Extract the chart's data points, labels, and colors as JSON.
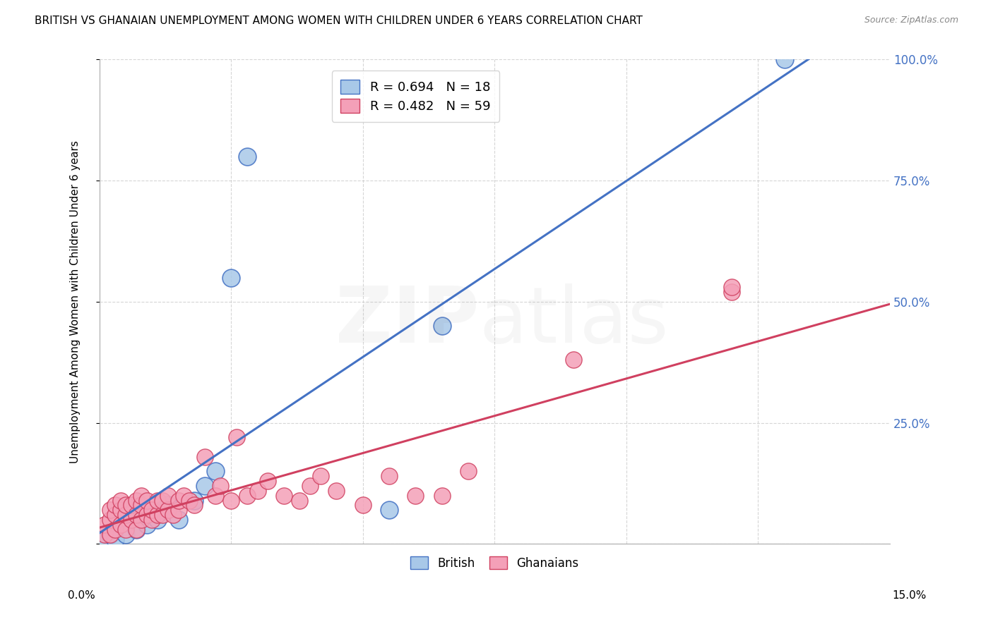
{
  "title": "BRITISH VS GHANAIAN UNEMPLOYMENT AMONG WOMEN WITH CHILDREN UNDER 6 YEARS CORRELATION CHART",
  "source": "Source: ZipAtlas.com",
  "ylabel": "Unemployment Among Women with Children Under 6 years",
  "british_R": 0.694,
  "british_N": 18,
  "ghanaian_R": 0.482,
  "ghanaian_N": 59,
  "british_color": "#a8c8e8",
  "british_line_color": "#4472c4",
  "ghanaian_color": "#f4a0b8",
  "ghanaian_line_color": "#d04060",
  "background_color": "#ffffff",
  "grid_color": "#cccccc",
  "xlim": [
    0.0,
    0.15
  ],
  "ylim": [
    0.0,
    1.0
  ],
  "ytick_vals": [
    0.0,
    0.25,
    0.5,
    0.75,
    1.0
  ],
  "ytick_labels": [
    "",
    "25.0%",
    "50.0%",
    "75.0%",
    "100.0%"
  ],
  "brit_x": [
    0.001,
    0.002,
    0.003,
    0.005,
    0.007,
    0.009,
    0.011,
    0.012,
    0.013,
    0.015,
    0.018,
    0.02,
    0.022,
    0.025,
    0.028,
    0.055,
    0.065,
    0.13
  ],
  "brit_y": [
    0.01,
    0.02,
    0.01,
    0.02,
    0.03,
    0.04,
    0.05,
    0.07,
    0.08,
    0.05,
    0.09,
    0.12,
    0.15,
    0.55,
    0.8,
    0.07,
    0.45,
    1.0
  ],
  "gh_x": [
    0.001,
    0.001,
    0.002,
    0.002,
    0.002,
    0.003,
    0.003,
    0.003,
    0.004,
    0.004,
    0.004,
    0.005,
    0.005,
    0.005,
    0.006,
    0.006,
    0.007,
    0.007,
    0.007,
    0.008,
    0.008,
    0.008,
    0.009,
    0.009,
    0.01,
    0.01,
    0.011,
    0.011,
    0.012,
    0.012,
    0.013,
    0.013,
    0.014,
    0.015,
    0.015,
    0.016,
    0.017,
    0.018,
    0.02,
    0.022,
    0.023,
    0.025,
    0.026,
    0.028,
    0.03,
    0.032,
    0.035,
    0.038,
    0.04,
    0.042,
    0.045,
    0.05,
    0.055,
    0.06,
    0.065,
    0.07,
    0.09,
    0.12,
    0.12
  ],
  "gh_y": [
    0.02,
    0.04,
    0.02,
    0.05,
    0.07,
    0.03,
    0.06,
    0.08,
    0.04,
    0.07,
    0.09,
    0.03,
    0.06,
    0.08,
    0.05,
    0.08,
    0.03,
    0.06,
    0.09,
    0.05,
    0.08,
    0.1,
    0.06,
    0.09,
    0.05,
    0.07,
    0.06,
    0.09,
    0.06,
    0.09,
    0.07,
    0.1,
    0.06,
    0.07,
    0.09,
    0.1,
    0.09,
    0.08,
    0.18,
    0.1,
    0.12,
    0.09,
    0.22,
    0.1,
    0.11,
    0.13,
    0.1,
    0.09,
    0.12,
    0.14,
    0.11,
    0.08,
    0.14,
    0.1,
    0.1,
    0.15,
    0.38,
    0.52,
    0.53
  ]
}
